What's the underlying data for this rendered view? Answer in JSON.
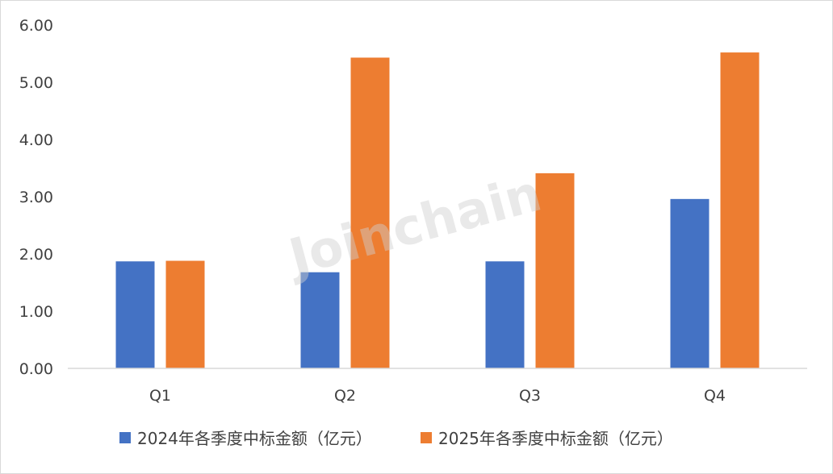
{
  "chart_data": {
    "type": "bar",
    "categories": [
      "Q1",
      "Q2",
      "Q3",
      "Q4"
    ],
    "series": [
      {
        "name": "2024年各季度中标金额（亿元）",
        "values": [
          1.87,
          1.68,
          1.87,
          2.96
        ],
        "color": "#4472C4"
      },
      {
        "name": "2025年各季度中标金额（亿元）",
        "values": [
          1.88,
          5.43,
          3.41,
          5.52
        ],
        "color": "#ED7D31"
      }
    ],
    "y_ticks": [
      "0.00",
      "1.00",
      "2.00",
      "3.00",
      "4.00",
      "5.00",
      "6.00"
    ],
    "ylim": [
      0,
      6
    ],
    "grid": false,
    "legend": "bottom",
    "watermark": "Joinchain"
  }
}
